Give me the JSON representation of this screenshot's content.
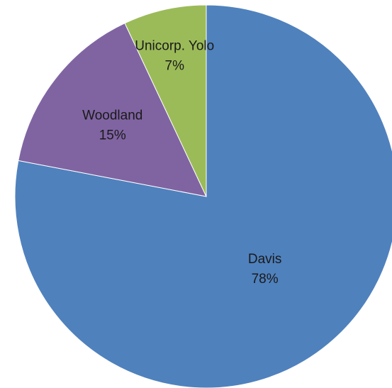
{
  "chart_data": {
    "type": "pie",
    "title": "",
    "slices": [
      {
        "label": "Davis",
        "value": 78,
        "value_label": "78%",
        "color": "#4f81bd"
      },
      {
        "label": "Woodland",
        "value": 15,
        "value_label": "15%",
        "color": "#8064a2"
      },
      {
        "label": "Unicorp. Yolo",
        "value": 7,
        "value_label": "7%",
        "color": "#9bbb59"
      }
    ],
    "start_angle_deg": 0,
    "direction": "clockwise",
    "legend": "none",
    "data_labels": "inside"
  }
}
